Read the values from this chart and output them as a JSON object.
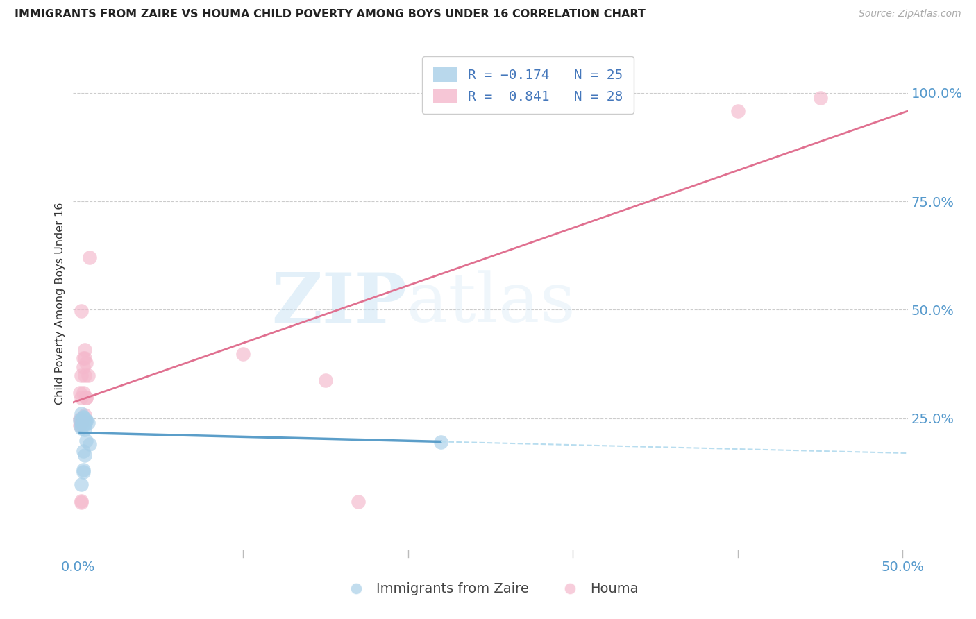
{
  "title": "IMMIGRANTS FROM ZAIRE VS HOUMA CHILD POVERTY AMONG BOYS UNDER 16 CORRELATION CHART",
  "source": "Source: ZipAtlas.com",
  "ylabel": "Child Poverty Among Boys Under 16",
  "xlim": [
    -0.003,
    0.503
  ],
  "ylim": [
    -0.07,
    1.1
  ],
  "background_color": "#ffffff",
  "grid_color": "#cccccc",
  "watermark_zip": "ZIP",
  "watermark_atlas": "atlas",
  "color_blue": "#a8cfe8",
  "color_pink": "#f4b8cc",
  "color_blue_line": "#5b9ec9",
  "color_pink_line": "#e07090",
  "color_blue_dashed": "#b8ddef",
  "zaire_x": [
    0.001,
    0.002,
    0.003,
    0.004,
    0.002,
    0.005,
    0.002,
    0.006,
    0.004,
    0.003,
    0.002,
    0.004,
    0.005,
    0.003,
    0.003,
    0.002,
    0.007,
    0.004,
    0.003,
    0.004,
    0.005,
    0.22,
    0.003,
    0.003,
    0.002
  ],
  "zaire_y": [
    0.245,
    0.248,
    0.252,
    0.235,
    0.26,
    0.243,
    0.23,
    0.24,
    0.248,
    0.243,
    0.236,
    0.241,
    0.247,
    0.253,
    0.237,
    0.228,
    0.191,
    0.224,
    0.174,
    0.165,
    0.198,
    0.196,
    0.132,
    0.127,
    0.098
  ],
  "houma_x": [
    0.001,
    0.003,
    0.002,
    0.004,
    0.001,
    0.002,
    0.003,
    0.005,
    0.004,
    0.002,
    0.001,
    0.003,
    0.005,
    0.006,
    0.004,
    0.002,
    0.007,
    0.003,
    0.002,
    0.1,
    0.005,
    0.004,
    0.15,
    0.4,
    0.45,
    0.002,
    0.17,
    0.002
  ],
  "houma_y": [
    0.308,
    0.368,
    0.348,
    0.408,
    0.248,
    0.298,
    0.388,
    0.378,
    0.258,
    0.243,
    0.233,
    0.308,
    0.298,
    0.348,
    0.388,
    0.238,
    0.62,
    0.243,
    0.498,
    0.398,
    0.298,
    0.348,
    0.338,
    0.958,
    0.988,
    0.06,
    0.058,
    0.056
  ]
}
